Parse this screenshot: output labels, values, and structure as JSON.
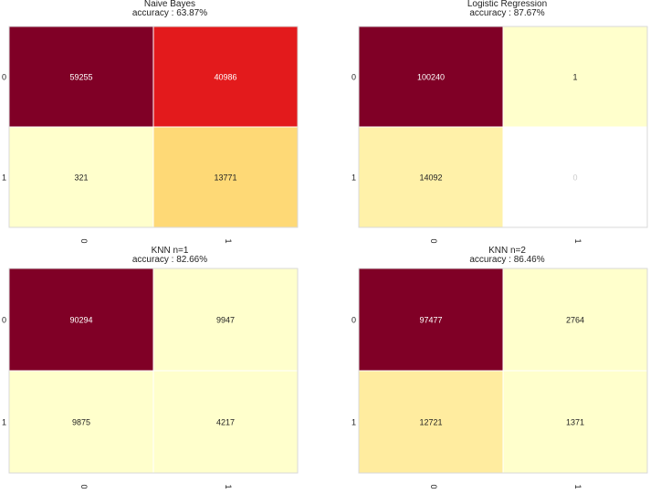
{
  "chart_data": [
    {
      "type": "heatmap",
      "title": "Naive Bayes",
      "subtitle": "accuracy : 63.87%",
      "x_categories": [
        "0",
        "1"
      ],
      "y_categories": [
        "0",
        "1"
      ],
      "values": [
        [
          59255,
          40986
        ],
        [
          321,
          13771
        ]
      ],
      "cell_colors": [
        [
          "#800026",
          "#e31a1c"
        ],
        [
          "#ffffcc",
          "#fed976"
        ]
      ],
      "value_text_colors": [
        [
          "#ffffff",
          "#ffffff"
        ],
        [
          "#222222",
          "#222222"
        ]
      ]
    },
    {
      "type": "heatmap",
      "title": "Logistic Regression",
      "subtitle": "accuracy : 87.67%",
      "x_categories": [
        "0",
        "1"
      ],
      "y_categories": [
        "0",
        "1"
      ],
      "values": [
        [
          100240,
          1
        ],
        [
          14092,
          0
        ]
      ],
      "cell_colors": [
        [
          "#800026",
          "#ffffcc"
        ],
        [
          "#fff1a9",
          "#ffffff"
        ]
      ],
      "value_text_colors": [
        [
          "#ffffff",
          "#222222"
        ],
        [
          "#222222",
          "#cccccc"
        ]
      ]
    },
    {
      "type": "heatmap",
      "title": "KNN n=1",
      "subtitle": "accuracy : 82.66%",
      "x_categories": [
        "0",
        "1"
      ],
      "y_categories": [
        "0",
        "1"
      ],
      "values": [
        [
          90294,
          9947
        ],
        [
          9875,
          4217
        ]
      ],
      "cell_colors": [
        [
          "#800026",
          "#ffffcc"
        ],
        [
          "#ffffcc",
          "#ffffcc"
        ]
      ],
      "value_text_colors": [
        [
          "#ffffff",
          "#222222"
        ],
        [
          "#222222",
          "#222222"
        ]
      ]
    },
    {
      "type": "heatmap",
      "title": "KNN n=2",
      "subtitle": "accuracy : 86.46%",
      "x_categories": [
        "0",
        "1"
      ],
      "y_categories": [
        "0",
        "1"
      ],
      "values": [
        [
          97477,
          2764
        ],
        [
          12721,
          1371
        ]
      ],
      "cell_colors": [
        [
          "#800026",
          "#ffffcc"
        ],
        [
          "#ffec9f",
          "#ffffcc"
        ]
      ],
      "value_text_colors": [
        [
          "#ffffff",
          "#222222"
        ],
        [
          "#222222",
          "#222222"
        ]
      ]
    }
  ]
}
